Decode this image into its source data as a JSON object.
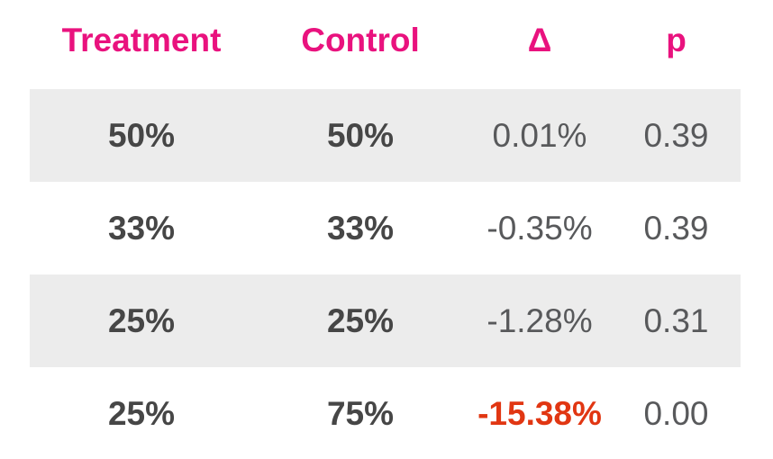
{
  "table": {
    "columns": [
      {
        "key": "treatment",
        "label": "Treatment"
      },
      {
        "key": "control",
        "label": "Control"
      },
      {
        "key": "delta",
        "label": "Δ"
      },
      {
        "key": "p",
        "label": "p"
      }
    ],
    "rows": [
      {
        "treatment": "50%",
        "control": "50%",
        "delta": "0.01%",
        "p": "0.39",
        "delta_highlight": false
      },
      {
        "treatment": "33%",
        "control": "33%",
        "delta": "-0.35%",
        "p": "0.39",
        "delta_highlight": false
      },
      {
        "treatment": "25%",
        "control": "25%",
        "delta": "-1.28%",
        "p": "0.31",
        "delta_highlight": false
      },
      {
        "treatment": "25%",
        "control": "75%",
        "delta": "-15.38%",
        "p": "0.00",
        "delta_highlight": true
      }
    ]
  },
  "colors": {
    "page_bg": "#FFFFFF",
    "header_text": "#E9127E",
    "value_strong": "#464646",
    "value_muted": "#58595B",
    "delta_negative": "#E13612",
    "row_stripe": "#ECECEC"
  },
  "chart_data": {
    "type": "table",
    "columns": [
      "Treatment",
      "Control",
      "Δ",
      "p"
    ],
    "rows": [
      [
        "50%",
        "50%",
        "0.01%",
        "0.39"
      ],
      [
        "33%",
        "33%",
        "-0.35%",
        "0.39"
      ],
      [
        "25%",
        "25%",
        "-1.28%",
        "0.31"
      ],
      [
        "25%",
        "75%",
        "-15.38%",
        "0.00"
      ]
    ],
    "notes_layout": "header row white with magenta bold labels; data rows alternate light-gray/white; Treatment and Control values bold dark gray; Δ and p values regular gray; Δ of -15.38% emphasized bold red"
  }
}
